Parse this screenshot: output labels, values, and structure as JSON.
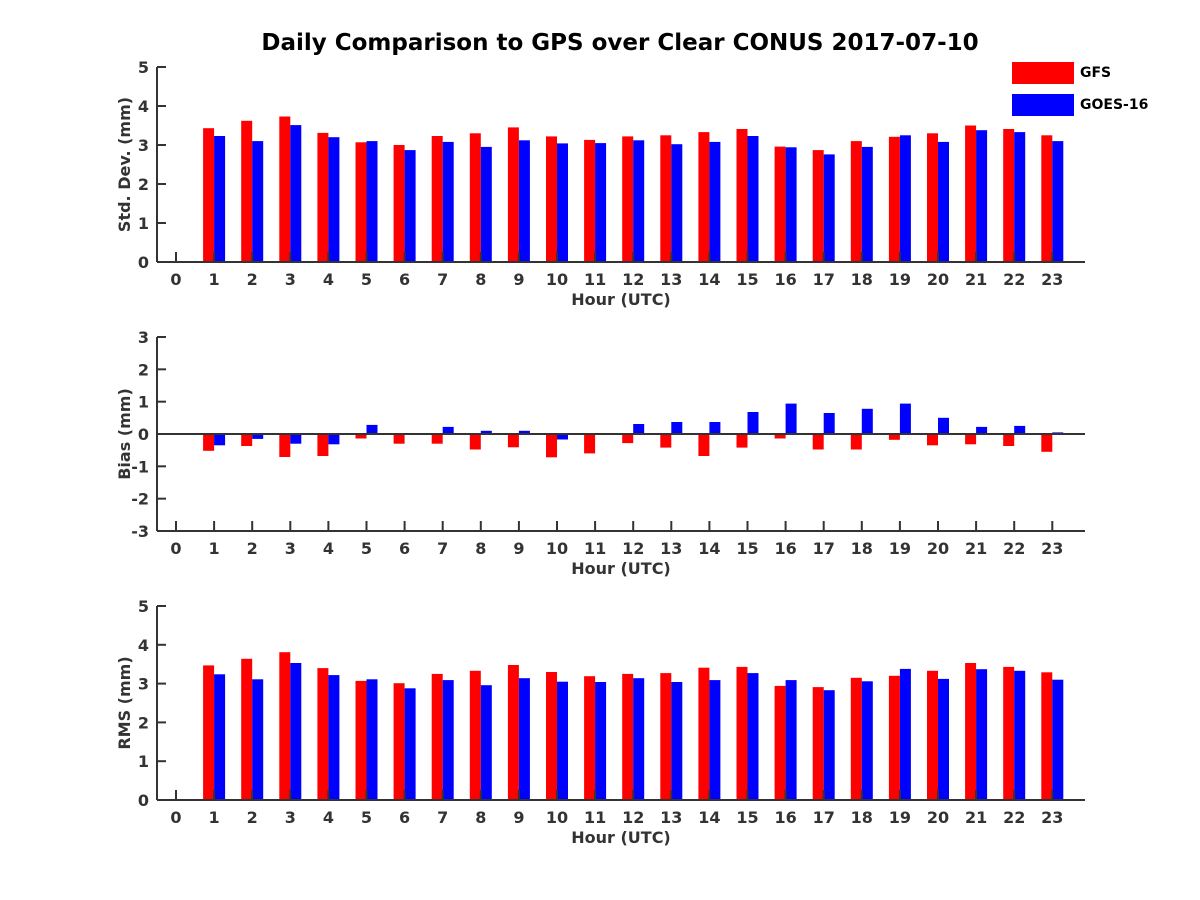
{
  "title": "Daily Comparison to GPS over Clear CONUS 2017-07-10",
  "legend": [
    {
      "label": "GFS",
      "color": "#ff0000"
    },
    {
      "label": "GOES-16",
      "color": "#0000ff"
    }
  ],
  "chart_data": [
    {
      "type": "bar",
      "title": "Daily Comparison to GPS over Clear CONUS 2017-07-10",
      "xlabel": "Hour (UTC)",
      "ylabel": "Std. Dev. (mm)",
      "ylim": [
        0,
        5
      ],
      "yticks": [
        0,
        1,
        2,
        3,
        4,
        5
      ],
      "categories": [
        "0",
        "1",
        "2",
        "3",
        "4",
        "5",
        "6",
        "7",
        "8",
        "9",
        "10",
        "11",
        "12",
        "13",
        "14",
        "15",
        "16",
        "17",
        "18",
        "19",
        "20",
        "21",
        "22",
        "23"
      ],
      "series": [
        {
          "name": "GFS",
          "color": "#ff0000",
          "values": [
            null,
            3.43,
            3.62,
            3.73,
            3.31,
            3.07,
            3.0,
            3.23,
            3.3,
            3.45,
            3.22,
            3.13,
            3.22,
            3.25,
            3.33,
            3.41,
            2.96,
            2.87,
            3.1,
            3.21,
            3.3,
            3.5,
            3.41,
            3.25
          ]
        },
        {
          "name": "GOES-16",
          "color": "#0000ff",
          "values": [
            null,
            3.23,
            3.1,
            3.51,
            3.2,
            3.1,
            2.87,
            3.08,
            2.95,
            3.12,
            3.04,
            3.05,
            3.12,
            3.02,
            3.08,
            3.23,
            2.94,
            2.76,
            2.95,
            3.25,
            3.08,
            3.38,
            3.33,
            3.1
          ]
        }
      ]
    },
    {
      "type": "bar",
      "xlabel": "Hour (UTC)",
      "ylabel": "Bias (mm)",
      "ylim": [
        -3,
        3
      ],
      "yticks": [
        -3,
        -2,
        -1,
        0,
        1,
        2,
        3
      ],
      "categories": [
        "0",
        "1",
        "2",
        "3",
        "4",
        "5",
        "6",
        "7",
        "8",
        "9",
        "10",
        "11",
        "12",
        "13",
        "14",
        "15",
        "16",
        "17",
        "18",
        "19",
        "20",
        "21",
        "22",
        "23"
      ],
      "series": [
        {
          "name": "GFS",
          "color": "#ff0000",
          "values": [
            null,
            -0.52,
            -0.37,
            -0.71,
            -0.68,
            -0.14,
            -0.3,
            -0.3,
            -0.48,
            -0.41,
            -0.72,
            -0.6,
            -0.28,
            -0.42,
            -0.68,
            -0.42,
            -0.14,
            -0.48,
            -0.48,
            -0.18,
            -0.35,
            -0.32,
            -0.37,
            -0.55
          ]
        },
        {
          "name": "GOES-16",
          "color": "#0000ff",
          "values": [
            null,
            -0.35,
            -0.15,
            -0.3,
            -0.32,
            0.28,
            0.03,
            0.22,
            0.1,
            0.1,
            -0.17,
            0.02,
            0.31,
            0.37,
            0.37,
            0.68,
            0.94,
            0.65,
            0.78,
            0.94,
            0.5,
            0.22,
            0.25,
            0.05
          ]
        }
      ]
    },
    {
      "type": "bar",
      "xlabel": "Hour (UTC)",
      "ylabel": "RMS (mm)",
      "ylim": [
        0,
        5
      ],
      "yticks": [
        0,
        1,
        2,
        3,
        4,
        5
      ],
      "categories": [
        "0",
        "1",
        "2",
        "3",
        "4",
        "5",
        "6",
        "7",
        "8",
        "9",
        "10",
        "11",
        "12",
        "13",
        "14",
        "15",
        "16",
        "17",
        "18",
        "19",
        "20",
        "21",
        "22",
        "23"
      ],
      "series": [
        {
          "name": "GFS",
          "color": "#ff0000",
          "values": [
            null,
            3.47,
            3.64,
            3.81,
            3.4,
            3.07,
            3.01,
            3.25,
            3.33,
            3.48,
            3.3,
            3.19,
            3.25,
            3.27,
            3.41,
            3.43,
            2.94,
            2.91,
            3.15,
            3.2,
            3.33,
            3.53,
            3.43,
            3.29
          ]
        },
        {
          "name": "GOES-16",
          "color": "#0000ff",
          "values": [
            null,
            3.24,
            3.11,
            3.53,
            3.22,
            3.11,
            2.88,
            3.09,
            2.96,
            3.14,
            3.05,
            3.04,
            3.14,
            3.04,
            3.09,
            3.27,
            3.09,
            2.83,
            3.06,
            3.38,
            3.12,
            3.37,
            3.33,
            3.1
          ]
        }
      ]
    }
  ]
}
